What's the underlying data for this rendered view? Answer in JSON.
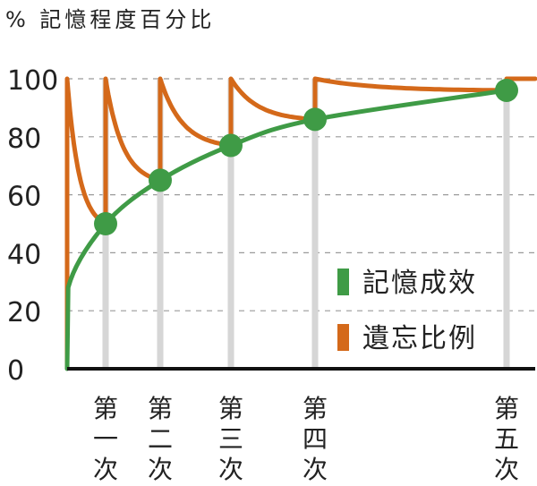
{
  "chart_data": {
    "type": "line",
    "ylabel": "%  記憶程度百分比",
    "ylim": [
      0,
      100
    ],
    "yticks": [
      0,
      20,
      40,
      60,
      80,
      100
    ],
    "grid": true,
    "legend_position": "lower-right",
    "reviews": [
      {
        "label": [
          "第",
          "一",
          "次"
        ],
        "t": 0.18,
        "retention": 50
      },
      {
        "label": [
          "第",
          "二",
          "次"
        ],
        "t": 0.42,
        "retention": 65
      },
      {
        "label": [
          "第",
          "三",
          "次"
        ],
        "t": 0.75,
        "retention": 77
      },
      {
        "label": [
          "第",
          "四",
          "次"
        ],
        "t": 1.15,
        "retention": 86
      },
      {
        "label": [
          "第",
          "五",
          "次"
        ],
        "t": 2.0,
        "retention": 96
      }
    ],
    "series": [
      {
        "name": "記憶成效",
        "color": "#3f9b46",
        "points": [
          [
            0,
            0
          ],
          [
            0.005,
            28
          ],
          [
            0.18,
            50
          ],
          [
            0.42,
            65
          ],
          [
            0.75,
            77
          ],
          [
            1.15,
            86
          ],
          [
            2.0,
            96
          ]
        ]
      },
      {
        "name": "遺忘比例",
        "color": "#d4691a",
        "cycles": [
          {
            "from": 0,
            "to": 0.18,
            "start": 100,
            "end": 50
          },
          {
            "from": 0.18,
            "to": 0.42,
            "start": 100,
            "end": 65
          },
          {
            "from": 0.42,
            "to": 0.75,
            "start": 100,
            "end": 77
          },
          {
            "from": 0.75,
            "to": 1.15,
            "start": 100,
            "end": 86
          },
          {
            "from": 1.15,
            "to": 2.0,
            "start": 100,
            "end": 96
          },
          {
            "from": 2.0,
            "to": 2.12,
            "start": 100,
            "end": 100
          }
        ]
      }
    ]
  }
}
